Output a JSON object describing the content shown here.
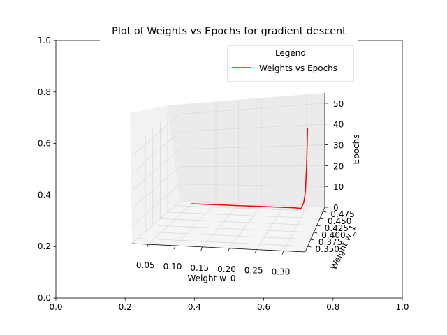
{
  "chart_data": {
    "type": "line",
    "projection": "3d",
    "title": "Plot of Weights vs Epochs for gradient descent",
    "legend": {
      "title": "Legend",
      "placement": "top-right",
      "entries": [
        {
          "label": "Weights vs Epochs",
          "color": "#ff0000"
        }
      ]
    },
    "background_axes": {
      "xlim": [
        0,
        1
      ],
      "ylim": [
        0,
        1
      ],
      "x_ticks": [
        "0.0",
        "0.2",
        "0.4",
        "0.6",
        "0.8",
        "1.0"
      ],
      "y_ticks": [
        "0.0",
        "0.2",
        "0.4",
        "0.6",
        "0.8",
        "1.0"
      ]
    },
    "axes3d": {
      "xlabel": "Weight w_0",
      "ylabel": "Weight w_1",
      "zlabel": "Epochs",
      "x_ticks": [
        "0.05",
        "0.10",
        "0.15",
        "0.20",
        "0.25",
        "0.30"
      ],
      "y_ticks": [
        "0.350",
        "0.375",
        "0.400",
        "0.425",
        "0.450",
        "0.475"
      ],
      "z_ticks": [
        "0",
        "10",
        "20",
        "30",
        "40",
        "50"
      ],
      "xlim": [
        0.02,
        0.34
      ],
      "ylim": [
        0.33,
        0.49
      ],
      "zlim": [
        0,
        55
      ],
      "grid": true
    },
    "series": [
      {
        "name": "Weights vs Epochs",
        "color": "#ff0000",
        "w0": [
          0.05,
          0.1,
          0.15,
          0.2,
          0.25,
          0.275,
          0.285,
          0.289,
          0.292,
          0.297,
          0.303,
          0.308,
          0.312,
          0.315
        ],
        "w1": [
          0.484,
          0.484,
          0.484,
          0.484,
          0.484,
          0.484,
          0.483,
          0.482,
          0.472,
          0.465,
          0.46,
          0.455,
          0.45,
          0.447
        ],
        "epochs": [
          0,
          0,
          0,
          0,
          0,
          0,
          0,
          0,
          1,
          3,
          6,
          12,
          25,
          44
        ]
      }
    ]
  }
}
